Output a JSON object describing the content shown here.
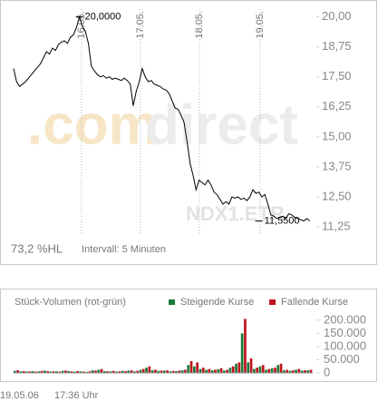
{
  "chart_data": [
    {
      "type": "line",
      "color": "#000000",
      "values": [
        17.85,
        17.3,
        17.1,
        17.2,
        17.3,
        17.45,
        17.6,
        17.75,
        17.9,
        18.05,
        18.3,
        18.55,
        18.45,
        18.7,
        18.6,
        18.85,
        18.95,
        19.0,
        18.9,
        19.15,
        19.25,
        19.55,
        20.0,
        19.6,
        19.4,
        18.9,
        17.95,
        17.75,
        17.6,
        17.5,
        17.55,
        17.45,
        17.5,
        17.4,
        17.45,
        17.4,
        17.35,
        17.45,
        17.35,
        17.2,
        16.3,
        16.9,
        17.3,
        17.85,
        17.5,
        17.3,
        17.35,
        17.2,
        17.15,
        17.1,
        17.0,
        16.95,
        16.8,
        16.5,
        16.2,
        16.15,
        15.9,
        15.6,
        14.8,
        13.9,
        13.4,
        12.8,
        13.2,
        13.1,
        13.0,
        13.2,
        13.0,
        12.7,
        12.6,
        12.4,
        12.2,
        12.3,
        12.2,
        12.5,
        12.45,
        12.5,
        12.4,
        12.45,
        12.35,
        12.5,
        12.8,
        12.65,
        12.7,
        12.5,
        12.6,
        12.2,
        11.75,
        11.7,
        11.6,
        11.65,
        11.7,
        11.6,
        11.8,
        11.75,
        11.65,
        11.6,
        11.55,
        11.5,
        11.6,
        11.5
      ],
      "xlim": [
        0,
        100
      ],
      "xticks": [
        {
          "value": 22.7,
          "label": "16.05."
        },
        {
          "value": 42.4,
          "label": "17.05."
        },
        {
          "value": 62.1,
          "label": "18.05."
        },
        {
          "value": 82.4,
          "label": "19.05."
        }
      ],
      "ylim": [
        10.8,
        20.4
      ],
      "yticks": [
        {
          "value": 11.25,
          "label": "11,25"
        },
        {
          "value": 12.5,
          "label": "12,50"
        },
        {
          "value": 13.75,
          "label": "13,75"
        },
        {
          "value": 15,
          "label": "15,00"
        },
        {
          "value": 16.25,
          "label": "16,25"
        },
        {
          "value": 17.5,
          "label": "17,50"
        },
        {
          "value": 18.75,
          "label": "18,75"
        },
        {
          "value": 20,
          "label": "20,00"
        }
      ],
      "grid": true,
      "annotations": [
        {
          "text": "20,0000",
          "x": 22,
          "y": 20.0
        },
        {
          "text": "11,5500",
          "x": 82,
          "y": 11.5
        }
      ],
      "watermark": [
        ".com",
        "direct"
      ],
      "symbol": "NDX1.ETR",
      "notes": [
        "73,2 %HL",
        "Intervall: 5 Minuten"
      ]
    },
    {
      "type": "bar",
      "title": "Stück-Volumen (rot-grün)",
      "xlim": [
        0,
        50
      ],
      "ylim": [
        0,
        220000
      ],
      "yticks": [
        0,
        {
          "value": 50000,
          "label": "50.000"
        },
        {
          "value": 100000,
          "label": "100.000"
        },
        {
          "value": 150000,
          "label": "150.000"
        },
        {
          "value": 200000,
          "label": "200.000"
        }
      ],
      "series": [
        {
          "name": "Steigende Kurse",
          "color": "#1a7a3a",
          "values": [
            8000,
            6000,
            5000,
            7000,
            6000,
            9000,
            5000,
            6000,
            8000,
            7000,
            5000,
            6000,
            4000,
            10000,
            12000,
            7000,
            6000,
            5000,
            8000,
            9000,
            6000,
            12000,
            20000,
            10000,
            8000,
            9000,
            6000,
            7000,
            10000,
            30000,
            25000,
            15000,
            12000,
            10000,
            14000,
            9000,
            20000,
            35000,
            150000,
            40000,
            15000,
            25000,
            12000,
            18000,
            30000,
            10000,
            8000,
            12000,
            9000,
            10000
          ]
        },
        {
          "name": "Fallende Kurse",
          "color": "#c0141e",
          "values": [
            10000,
            7000,
            6000,
            5000,
            8000,
            7000,
            6000,
            5000,
            9000,
            6000,
            7000,
            5000,
            6000,
            9000,
            15000,
            6000,
            8000,
            6000,
            7000,
            10000,
            8000,
            15000,
            25000,
            12000,
            9000,
            10000,
            8000,
            9000,
            12000,
            45000,
            40000,
            20000,
            15000,
            12000,
            18000,
            12000,
            25000,
            40000,
            205000,
            55000,
            20000,
            30000,
            15000,
            20000,
            35000,
            12000,
            10000,
            15000,
            10000,
            12000
          ]
        }
      ]
    }
  ],
  "footer": [
    "19.05.06",
    "17:36 Uhr"
  ]
}
